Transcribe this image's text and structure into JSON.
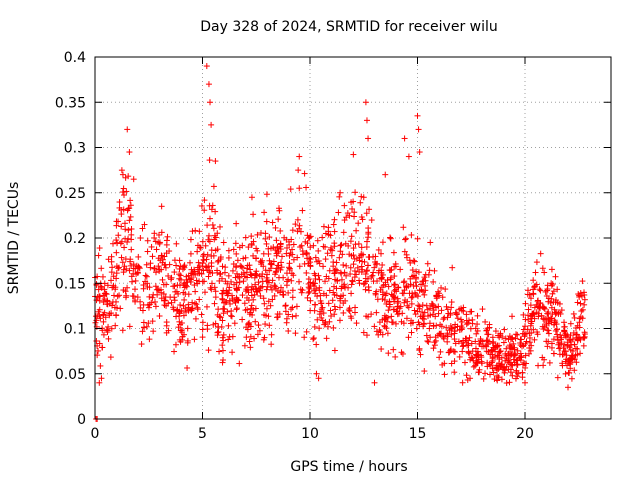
{
  "chart_data": {
    "type": "scatter",
    "title": "Day 328 of 2024, SRMTID for receiver wilu",
    "xlabel": "GPS time / hours",
    "ylabel": "SRMTID / TECUs",
    "xlim": [
      0,
      24
    ],
    "ylim": [
      0,
      0.4
    ],
    "xticks": [
      0,
      5,
      10,
      15,
      20
    ],
    "xtick_labels": [
      "0",
      "5",
      "10",
      "15",
      "20"
    ],
    "yticks": [
      0,
      0.05,
      0.1,
      0.15,
      0.2,
      0.25,
      0.3,
      0.35,
      0.4
    ],
    "ytick_labels": [
      "0",
      "0.05",
      "0.1",
      "0.15",
      "0.2",
      "0.25",
      "0.3",
      "0.35",
      "0.4"
    ],
    "grid": true,
    "marker": "+",
    "series": [
      {
        "name": "SRMTID",
        "color": "#ff0000",
        "trend": [
          [
            0.0,
            0.14
          ],
          [
            0.3,
            0.12
          ],
          [
            0.6,
            0.11
          ],
          [
            0.9,
            0.15
          ],
          [
            1.2,
            0.19
          ],
          [
            1.5,
            0.21
          ],
          [
            1.8,
            0.16
          ],
          [
            2.1,
            0.14
          ],
          [
            2.4,
            0.15
          ],
          [
            2.7,
            0.16
          ],
          [
            3.0,
            0.17
          ],
          [
            3.3,
            0.14
          ],
          [
            3.6,
            0.13
          ],
          [
            3.9,
            0.12
          ],
          [
            4.2,
            0.13
          ],
          [
            4.5,
            0.14
          ],
          [
            4.8,
            0.15
          ],
          [
            5.1,
            0.17
          ],
          [
            5.4,
            0.19
          ],
          [
            5.7,
            0.15
          ],
          [
            6.0,
            0.13
          ],
          [
            6.3,
            0.14
          ],
          [
            6.6,
            0.13
          ],
          [
            6.9,
            0.15
          ],
          [
            7.2,
            0.14
          ],
          [
            7.5,
            0.16
          ],
          [
            7.8,
            0.15
          ],
          [
            8.1,
            0.16
          ],
          [
            8.4,
            0.17
          ],
          [
            8.7,
            0.17
          ],
          [
            9.0,
            0.16
          ],
          [
            9.3,
            0.17
          ],
          [
            9.6,
            0.18
          ],
          [
            9.9,
            0.17
          ],
          [
            10.2,
            0.14
          ],
          [
            10.5,
            0.13
          ],
          [
            10.8,
            0.15
          ],
          [
            11.1,
            0.16
          ],
          [
            11.4,
            0.15
          ],
          [
            11.7,
            0.17
          ],
          [
            12.0,
            0.19
          ],
          [
            12.3,
            0.18
          ],
          [
            12.6,
            0.17
          ],
          [
            12.9,
            0.16
          ],
          [
            13.2,
            0.14
          ],
          [
            13.5,
            0.13
          ],
          [
            13.8,
            0.14
          ],
          [
            14.1,
            0.13
          ],
          [
            14.4,
            0.15
          ],
          [
            14.7,
            0.14
          ],
          [
            15.0,
            0.13
          ],
          [
            15.3,
            0.12
          ],
          [
            15.6,
            0.12
          ],
          [
            15.9,
            0.11
          ],
          [
            16.2,
            0.1
          ],
          [
            16.5,
            0.1
          ],
          [
            16.8,
            0.11
          ],
          [
            17.1,
            0.09
          ],
          [
            17.4,
            0.09
          ],
          [
            17.7,
            0.08
          ],
          [
            18.0,
            0.08
          ],
          [
            18.3,
            0.08
          ],
          [
            18.6,
            0.07
          ],
          [
            18.9,
            0.07
          ],
          [
            19.2,
            0.08
          ],
          [
            19.5,
            0.07
          ],
          [
            19.8,
            0.07
          ],
          [
            20.1,
            0.1
          ],
          [
            20.4,
            0.13
          ],
          [
            20.7,
            0.13
          ],
          [
            21.0,
            0.11
          ],
          [
            21.3,
            0.12
          ],
          [
            21.6,
            0.1
          ],
          [
            21.9,
            0.08
          ],
          [
            22.2,
            0.07
          ],
          [
            22.5,
            0.1
          ],
          [
            22.8,
            0.12
          ]
        ],
        "spikes": [
          [
            0.2,
            0.04
          ],
          [
            0.3,
            0.045
          ],
          [
            1.3,
            0.27
          ],
          [
            1.5,
            0.32
          ],
          [
            1.6,
            0.295
          ],
          [
            1.8,
            0.265
          ],
          [
            3.1,
            0.235
          ],
          [
            5.2,
            0.39
          ],
          [
            5.3,
            0.37
          ],
          [
            5.35,
            0.35
          ],
          [
            5.4,
            0.325
          ],
          [
            5.6,
            0.285
          ],
          [
            7.3,
            0.245
          ],
          [
            9.5,
            0.29
          ],
          [
            9.45,
            0.275
          ],
          [
            9.5,
            0.255
          ],
          [
            11.4,
            0.25
          ],
          [
            12.5,
            0.245
          ],
          [
            12.6,
            0.35
          ],
          [
            12.65,
            0.33
          ],
          [
            12.7,
            0.31
          ],
          [
            13.5,
            0.27
          ],
          [
            14.4,
            0.31
          ],
          [
            14.6,
            0.29
          ],
          [
            15.0,
            0.335
          ],
          [
            15.05,
            0.32
          ],
          [
            15.1,
            0.295
          ],
          [
            13.0,
            0.04
          ],
          [
            10.3,
            0.05
          ],
          [
            10.4,
            0.045
          ],
          [
            20.0,
            0.04
          ],
          [
            22.0,
            0.035
          ]
        ],
        "zero_points": [
          [
            0.05,
            0.0
          ],
          [
            0.1,
            0.0
          ]
        ]
      }
    ]
  }
}
